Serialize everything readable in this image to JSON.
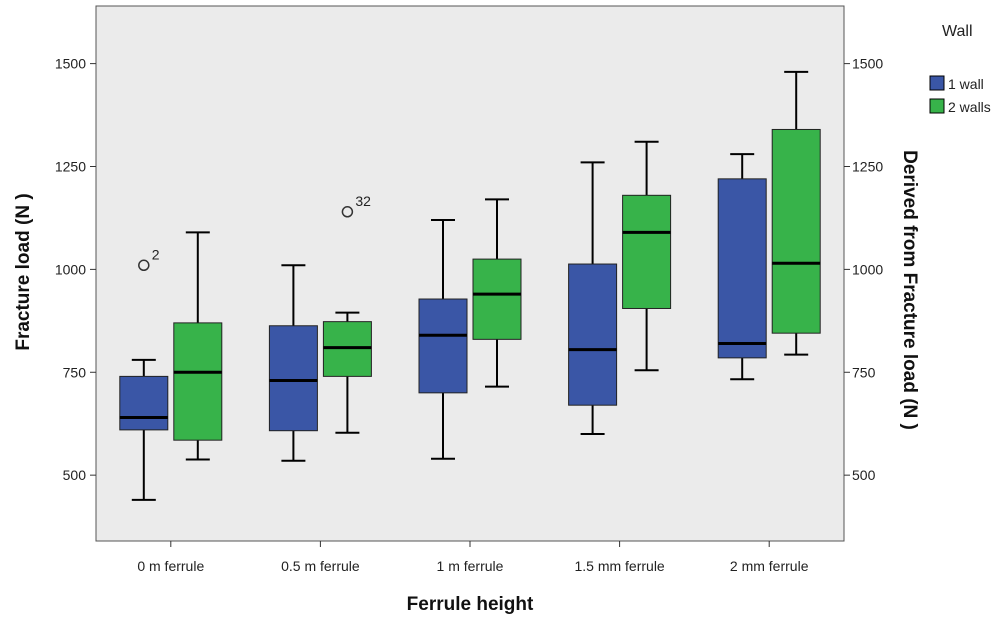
{
  "chart_data": {
    "type": "boxplot",
    "xlabel": "Ferrule height",
    "ylabel": "Fracture load (N )",
    "y2label": "Derived from Fracture load (N )",
    "ylim": [
      340,
      1640
    ],
    "yticks": [
      500,
      750,
      1000,
      1250,
      1500
    ],
    "categories": [
      "0 m ferrule",
      "0.5 m ferrule",
      "1 m ferrule",
      "1.5 mm ferrule",
      "2 mm ferrule"
    ],
    "legend": {
      "title": "Wall",
      "position": "right"
    },
    "colors": {
      "plot_background": "#ebebeb",
      "whisker": "#000000"
    },
    "series": [
      {
        "name": "1 wall",
        "color": "#3a56a6",
        "boxes": [
          {
            "min": 440,
            "q1": 610,
            "median": 640,
            "q3": 740,
            "max": 780,
            "outliers": [
              {
                "value": 1010,
                "label": "2"
              }
            ]
          },
          {
            "min": 535,
            "q1": 608,
            "median": 730,
            "q3": 863,
            "max": 1010,
            "outliers": []
          },
          {
            "min": 540,
            "q1": 700,
            "median": 840,
            "q3": 928,
            "max": 1120,
            "outliers": []
          },
          {
            "min": 600,
            "q1": 670,
            "median": 805,
            "q3": 1013,
            "max": 1260,
            "outliers": []
          },
          {
            "min": 733,
            "q1": 785,
            "median": 820,
            "q3": 1220,
            "max": 1280,
            "outliers": []
          }
        ]
      },
      {
        "name": "2 walls",
        "color": "#37b34a",
        "boxes": [
          {
            "min": 538,
            "q1": 585,
            "median": 750,
            "q3": 870,
            "max": 1090,
            "outliers": []
          },
          {
            "min": 603,
            "q1": 740,
            "median": 810,
            "q3": 873,
            "max": 895,
            "outliers": [
              {
                "value": 1140,
                "label": "32"
              }
            ]
          },
          {
            "min": 715,
            "q1": 830,
            "median": 940,
            "q3": 1025,
            "max": 1170,
            "outliers": []
          },
          {
            "min": 755,
            "q1": 905,
            "median": 1090,
            "q3": 1180,
            "max": 1310,
            "outliers": []
          },
          {
            "min": 793,
            "q1": 845,
            "median": 1015,
            "q3": 1340,
            "max": 1480,
            "outliers": []
          }
        ]
      }
    ]
  }
}
